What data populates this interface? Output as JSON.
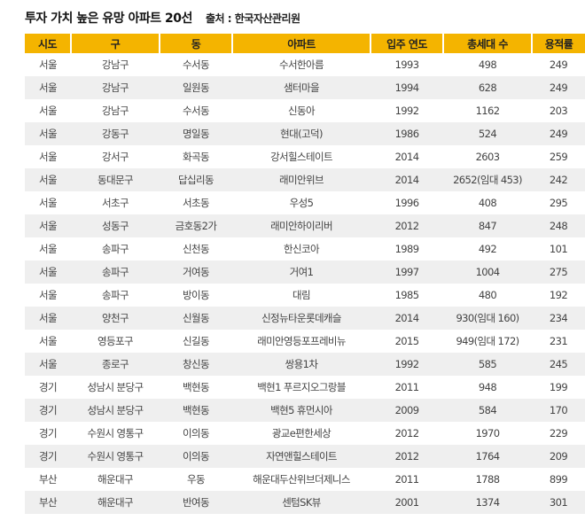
{
  "header": {
    "title": "투자 가치 높은 유망 아파트 20선",
    "source": "출처 : 한국자산관리원"
  },
  "table": {
    "columns": [
      "시도",
      "구",
      "동",
      "아파트",
      "입주 연도",
      "총세대 수",
      "용적률"
    ],
    "rows": [
      [
        "서울",
        "강남구",
        "수서동",
        "수서한아름",
        1993,
        498,
        249
      ],
      [
        "서울",
        "강남구",
        "일원동",
        "샘터마을",
        1994,
        628,
        249
      ],
      [
        "서울",
        "강남구",
        "수서동",
        "신동아",
        1992,
        1162,
        203
      ],
      [
        "서울",
        "강동구",
        "명일동",
        "현대(고덕)",
        1986,
        524,
        249
      ],
      [
        "서울",
        "강서구",
        "화곡동",
        "강서힐스테이트",
        2014,
        2603,
        259
      ],
      [
        "서울",
        "동대문구",
        "답십리동",
        "래미안위브",
        2014,
        "2652(임대 453)",
        242
      ],
      [
        "서울",
        "서초구",
        "서초동",
        "우성5",
        1996,
        408,
        295
      ],
      [
        "서울",
        "성동구",
        "금호동2가",
        "래미안하이리버",
        2012,
        847,
        248
      ],
      [
        "서울",
        "송파구",
        "신천동",
        "한신코아",
        1989,
        492,
        101
      ],
      [
        "서울",
        "송파구",
        "거여동",
        "거여1",
        1997,
        1004,
        275
      ],
      [
        "서울",
        "송파구",
        "방이동",
        "대림",
        1985,
        480,
        192
      ],
      [
        "서울",
        "양천구",
        "신월동",
        "신정뉴타운롯데캐슬",
        2014,
        "930(임대 160)",
        234
      ],
      [
        "서울",
        "영등포구",
        "신길동",
        "래미안영등포프레비뉴",
        2015,
        "949(임대 172)",
        231
      ],
      [
        "서울",
        "종로구",
        "창신동",
        "쌍용1차",
        1992,
        585,
        245
      ],
      [
        "경기",
        "성남시 분당구",
        "백현동",
        "백현1 푸르지오그랑블",
        2011,
        948,
        199
      ],
      [
        "경기",
        "성남시 분당구",
        "백현동",
        "백현5 휴먼시아",
        2009,
        584,
        170
      ],
      [
        "경기",
        "수원시 영통구",
        "이의동",
        "광교e편한세상",
        2012,
        1970,
        229
      ],
      [
        "경기",
        "수원시 영통구",
        "이의동",
        "자연앤힐스테이트",
        2012,
        1764,
        209
      ],
      [
        "부산",
        "해운대구",
        "우동",
        "해운대두산위브더제니스",
        2011,
        1788,
        899
      ],
      [
        "부산",
        "해운대구",
        "반여동",
        "센텀SK뷰",
        2001,
        1374,
        301
      ]
    ]
  }
}
